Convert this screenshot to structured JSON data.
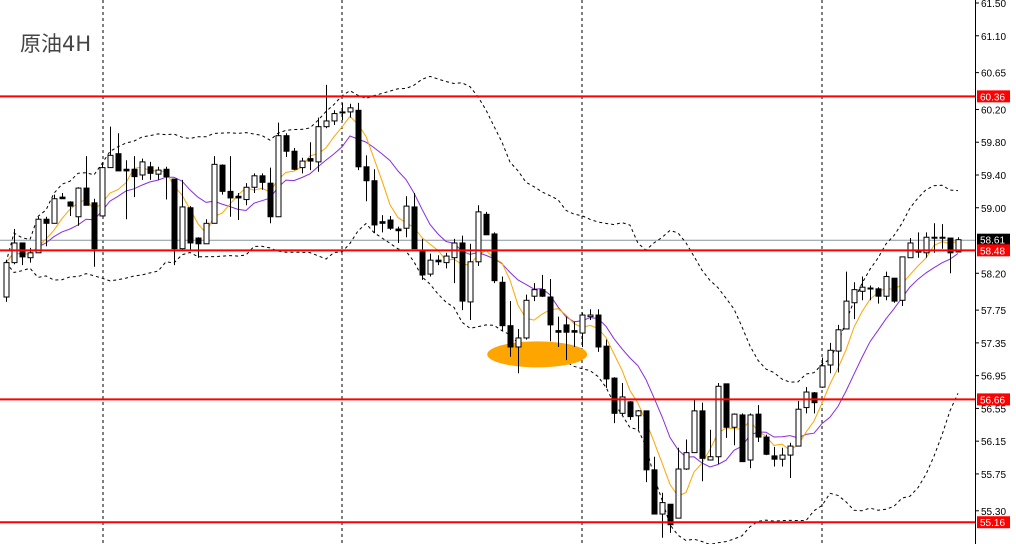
{
  "title": "原油4H",
  "colors": {
    "level_line": "#ff0000",
    "current_price_line": "#8796a5",
    "ma_fast": "#ffa500",
    "ma_slow": "#8a2be2",
    "bands": "#000000",
    "annotation": "#ffa500",
    "bull_body": "#ffffff",
    "bear_body": "#000000"
  },
  "chart_data": {
    "type": "candlestick",
    "title": "原油4H",
    "ylim": [
      54.9,
      61.55
    ],
    "y_ticks": [
      "61.50",
      "61.10",
      "60.65",
      "60.20",
      "59.80",
      "59.40",
      "59.00",
      "58.20",
      "57.75",
      "57.35",
      "56.95",
      "56.55",
      "56.15",
      "55.75",
      "55.30"
    ],
    "levels": [
      "60.36",
      "58.48",
      "56.66",
      "55.16"
    ],
    "current_price": "58.61",
    "grid": false,
    "ohlc": [
      [
        57.91,
        58.36,
        57.85,
        58.33
      ],
      [
        58.33,
        58.74,
        58.31,
        58.57
      ],
      [
        58.57,
        58.57,
        58.3,
        58.4
      ],
      [
        58.39,
        58.51,
        58.33,
        58.45
      ],
      [
        58.45,
        58.89,
        58.45,
        58.86
      ],
      [
        58.86,
        58.89,
        58.53,
        58.81
      ],
      [
        58.81,
        59.16,
        58.81,
        59.11
      ],
      [
        59.13,
        59.18,
        59.11,
        59.11
      ],
      [
        59.07,
        59.08,
        58.9,
        59.02
      ],
      [
        58.89,
        59.25,
        58.78,
        59.24
      ],
      [
        59.24,
        59.63,
        59.03,
        59.03
      ],
      [
        59.06,
        59.11,
        58.28,
        58.5
      ],
      [
        58.9,
        59.55,
        58.9,
        59.49
      ],
      [
        59.49,
        59.99,
        59.49,
        59.64
      ],
      [
        59.66,
        59.91,
        59.45,
        59.45
      ],
      [
        59.47,
        59.58,
        58.86,
        59.45
      ],
      [
        59.47,
        59.63,
        59.13,
        59.38
      ],
      [
        59.4,
        59.6,
        59.34,
        59.56
      ],
      [
        59.5,
        59.56,
        59.34,
        59.42
      ],
      [
        59.41,
        59.5,
        59.34,
        59.46
      ],
      [
        59.47,
        59.5,
        59.1,
        59.38
      ],
      [
        59.35,
        59.35,
        58.3,
        58.5
      ],
      [
        58.5,
        59.34,
        58.48,
        59.01
      ],
      [
        59.0,
        59.02,
        58.48,
        58.57
      ],
      [
        58.63,
        58.64,
        58.39,
        58.56
      ],
      [
        58.56,
        58.86,
        58.56,
        58.81
      ],
      [
        58.81,
        59.63,
        58.81,
        59.53
      ],
      [
        59.52,
        59.53,
        59.16,
        59.2
      ],
      [
        59.2,
        59.63,
        58.89,
        59.12
      ],
      [
        59.14,
        59.18,
        58.85,
        59.12
      ],
      [
        59.1,
        59.3,
        59.03,
        59.25
      ],
      [
        59.25,
        59.42,
        59.18,
        59.39
      ],
      [
        59.39,
        59.42,
        59.22,
        59.31
      ],
      [
        59.3,
        59.49,
        58.81,
        58.89
      ],
      [
        58.89,
        60.04,
        58.89,
        59.88
      ],
      [
        59.88,
        59.91,
        59.62,
        59.69
      ],
      [
        59.69,
        59.73,
        59.46,
        59.47
      ],
      [
        59.49,
        59.61,
        59.42,
        59.57
      ],
      [
        59.6,
        59.8,
        59.46,
        59.57
      ],
      [
        59.56,
        60.1,
        59.44,
        59.99
      ],
      [
        59.99,
        60.5,
        59.97,
        60.06
      ],
      [
        60.06,
        60.19,
        60.01,
        60.15
      ],
      [
        60.17,
        60.28,
        60.07,
        60.16
      ],
      [
        60.17,
        60.27,
        60.1,
        60.22
      ],
      [
        60.19,
        60.28,
        59.46,
        59.5
      ],
      [
        59.5,
        59.64,
        59.08,
        59.33
      ],
      [
        59.33,
        59.47,
        58.69,
        58.79
      ],
      [
        58.83,
        58.91,
        58.7,
        58.81
      ],
      [
        58.85,
        58.9,
        58.73,
        58.75
      ],
      [
        58.74,
        58.77,
        58.57,
        58.72
      ],
      [
        58.75,
        59.14,
        58.64,
        59.02
      ],
      [
        59.01,
        59.18,
        58.5,
        58.5
      ],
      [
        58.48,
        58.62,
        58.12,
        58.18
      ],
      [
        58.19,
        58.44,
        58.16,
        58.36
      ],
      [
        58.36,
        58.42,
        58.3,
        58.34
      ],
      [
        58.33,
        58.45,
        58.26,
        58.41
      ],
      [
        58.39,
        58.62,
        58.08,
        58.57
      ],
      [
        58.57,
        58.66,
        57.75,
        57.86
      ],
      [
        57.85,
        58.56,
        57.63,
        58.34
      ],
      [
        58.34,
        59.03,
        58.29,
        58.95
      ],
      [
        58.92,
        58.95,
        58.67,
        58.67
      ],
      [
        58.68,
        58.7,
        58.08,
        58.11
      ],
      [
        58.09,
        58.16,
        57.5,
        57.56
      ],
      [
        57.56,
        57.86,
        57.18,
        57.3
      ],
      [
        57.3,
        57.52,
        56.98,
        57.41
      ],
      [
        57.41,
        57.94,
        57.39,
        57.87
      ],
      [
        57.92,
        58.08,
        57.86,
        58.0
      ],
      [
        58.0,
        58.18,
        57.91,
        57.92
      ],
      [
        57.91,
        58.13,
        57.37,
        57.57
      ],
      [
        57.5,
        57.67,
        57.3,
        57.48
      ],
      [
        57.57,
        57.67,
        57.14,
        57.48
      ],
      [
        57.5,
        57.61,
        57.3,
        57.48
      ],
      [
        57.47,
        57.72,
        57.3,
        57.69
      ],
      [
        57.67,
        57.76,
        57.63,
        57.69
      ],
      [
        57.69,
        57.76,
        57.24,
        57.3
      ],
      [
        57.31,
        57.39,
        56.8,
        56.91
      ],
      [
        56.92,
        56.93,
        56.37,
        56.49
      ],
      [
        56.49,
        56.86,
        56.47,
        56.69
      ],
      [
        56.63,
        56.64,
        56.41,
        56.45
      ],
      [
        56.46,
        56.53,
        56.29,
        56.52
      ],
      [
        56.52,
        56.52,
        55.65,
        55.8
      ],
      [
        55.8,
        55.96,
        55.26,
        55.26
      ],
      [
        55.26,
        55.52,
        54.97,
        55.4
      ],
      [
        55.38,
        55.38,
        55.03,
        55.13
      ],
      [
        55.21,
        56.07,
        55.21,
        55.81
      ],
      [
        55.81,
        56.17,
        55.8,
        56.01
      ],
      [
        56.01,
        56.67,
        56.01,
        56.52
      ],
      [
        56.52,
        56.62,
        55.66,
        55.94
      ],
      [
        55.92,
        56.29,
        55.92,
        55.96
      ],
      [
        55.96,
        56.86,
        55.87,
        56.82
      ],
      [
        56.85,
        56.85,
        56.19,
        56.32
      ],
      [
        56.32,
        56.49,
        56.1,
        56.48
      ],
      [
        56.47,
        56.49,
        55.9,
        55.9
      ],
      [
        55.92,
        56.49,
        55.82,
        56.47
      ],
      [
        56.48,
        56.59,
        56.14,
        56.2
      ],
      [
        56.2,
        56.23,
        55.98,
        55.99
      ],
      [
        55.97,
        56.08,
        55.84,
        55.93
      ],
      [
        55.93,
        56.07,
        55.84,
        55.98
      ],
      [
        55.98,
        56.13,
        55.7,
        56.09
      ],
      [
        56.09,
        56.64,
        56.09,
        56.54
      ],
      [
        56.56,
        56.81,
        56.49,
        56.75
      ],
      [
        56.74,
        56.75,
        56.49,
        56.62
      ],
      [
        56.81,
        57.17,
        56.8,
        57.07
      ],
      [
        57.08,
        57.35,
        56.98,
        57.26
      ],
      [
        57.25,
        57.57,
        56.99,
        57.51
      ],
      [
        57.52,
        58.22,
        57.52,
        57.86
      ],
      [
        57.84,
        58.09,
        57.64,
        58.0
      ],
      [
        57.98,
        58.16,
        57.87,
        58.03
      ],
      [
        58.02,
        58.05,
        57.87,
        58.01
      ],
      [
        58.01,
        58.03,
        57.83,
        57.92
      ],
      [
        57.92,
        58.22,
        57.87,
        58.16
      ],
      [
        58.14,
        58.14,
        57.84,
        57.86
      ],
      [
        57.87,
        58.4,
        57.8,
        58.4
      ],
      [
        58.39,
        58.63,
        58.39,
        58.57
      ],
      [
        58.47,
        58.7,
        58.39,
        58.46
      ],
      [
        58.45,
        58.7,
        58.39,
        58.64
      ],
      [
        58.64,
        58.81,
        58.45,
        58.63
      ],
      [
        58.64,
        58.8,
        58.5,
        58.63
      ],
      [
        58.63,
        58.63,
        58.2,
        58.45
      ],
      [
        58.46,
        58.64,
        58.46,
        58.61
      ]
    ],
    "annotations": [
      {
        "type": "ellipse",
        "candle_index": 66.4,
        "price": 57.21
      }
    ]
  }
}
